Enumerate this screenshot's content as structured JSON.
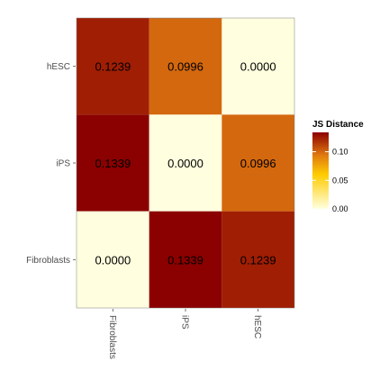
{
  "chart_data": {
    "type": "heatmap",
    "title": "",
    "xlabel": "",
    "ylabel": "",
    "x_categories": [
      "Fibroblasts",
      "iPS",
      "hESC"
    ],
    "y_categories": [
      "hESC",
      "iPS",
      "Fibroblasts"
    ],
    "values": [
      [
        0.1239,
        0.0996,
        0.0
      ],
      [
        0.1339,
        0.0,
        0.0996
      ],
      [
        0.0,
        0.1339,
        0.1239
      ]
    ],
    "cell_labels": [
      [
        "0.1239",
        "0.0996",
        "0.0000"
      ],
      [
        "0.1339",
        "0.0000",
        "0.0996"
      ],
      [
        "0.0000",
        "0.1339",
        "0.1239"
      ]
    ],
    "color_range": [
      0,
      0.1339
    ],
    "colors": {
      "low": "#ffffdf",
      "mid": "#ffcc00",
      "high": "#8b0000"
    },
    "legend": {
      "title": "JS Distance",
      "ticks": [
        0.1,
        0.05,
        0.0
      ],
      "tick_labels": [
        "0.10",
        "0.05",
        "0.00"
      ],
      "position": "right"
    },
    "x_tick_rotation": "rotated",
    "grid": false
  }
}
